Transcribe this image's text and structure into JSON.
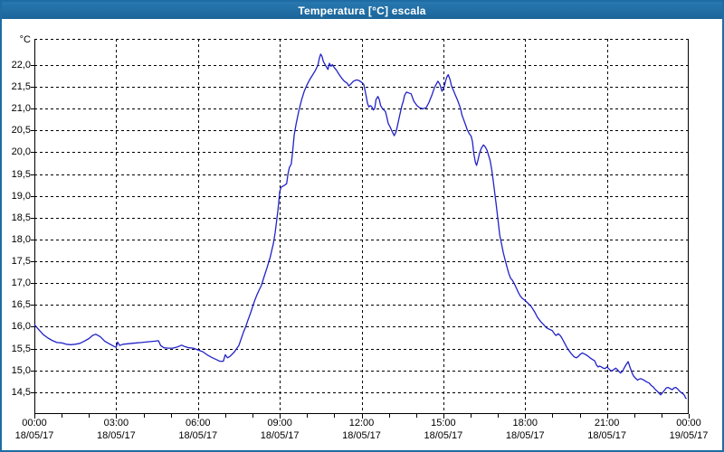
{
  "window": {
    "title": "Temperatura [°C] escala"
  },
  "colors": {
    "frame": "#1e6ca3",
    "titlebar": "#1e6ca3",
    "title_text": "#ffffff",
    "plot_background": "#ffffff",
    "grid": "#000000",
    "axis": "#000000",
    "series_line": "#2222c8",
    "label_text": "#000000"
  },
  "chart_data": {
    "type": "line",
    "title": "Temperatura [°C] escala",
    "series_name": "Temperatura",
    "y_unit_label": "°C",
    "xlabel": "",
    "ylabel": "°C",
    "x_range_hours": [
      0,
      24
    ],
    "y_range": [
      14.0,
      22.6
    ],
    "grid": "dashed",
    "legend": "none",
    "y_ticks": [
      22.0,
      21.5,
      21.0,
      20.5,
      20.0,
      19.5,
      19.0,
      18.5,
      18.0,
      17.5,
      17.0,
      16.5,
      16.0,
      15.5,
      15.0,
      14.5
    ],
    "y_tick_labels": [
      "22,0",
      "21,5",
      "21,0",
      "20,5",
      "20,0",
      "19,5",
      "19,0",
      "18,5",
      "18,0",
      "17,5",
      "17,0",
      "16,5",
      "16,0",
      "15,5",
      "15,0",
      "14,5"
    ],
    "x_ticks": [
      {
        "hour": 0,
        "time": "00:00",
        "date": "18/05/17"
      },
      {
        "hour": 3,
        "time": "03:00",
        "date": "18/05/17"
      },
      {
        "hour": 6,
        "time": "06:00",
        "date": "18/05/17"
      },
      {
        "hour": 9,
        "time": "09:00",
        "date": "18/05/17"
      },
      {
        "hour": 12,
        "time": "12:00",
        "date": "18/05/17"
      },
      {
        "hour": 15,
        "time": "15:00",
        "date": "18/05/17"
      },
      {
        "hour": 18,
        "time": "18:00",
        "date": "18/05/17"
      },
      {
        "hour": 21,
        "time": "21:00",
        "date": "18/05/17"
      },
      {
        "hour": 24,
        "time": "00:00",
        "date": "19/05/17"
      }
    ],
    "minor_tick_every_hours": 1,
    "points": [
      [
        0.0,
        16.05
      ],
      [
        0.17,
        15.93
      ],
      [
        0.33,
        15.82
      ],
      [
        0.5,
        15.74
      ],
      [
        0.67,
        15.68
      ],
      [
        0.83,
        15.64
      ],
      [
        1.0,
        15.63
      ],
      [
        1.17,
        15.6
      ],
      [
        1.33,
        15.59
      ],
      [
        1.5,
        15.6
      ],
      [
        1.67,
        15.62
      ],
      [
        1.83,
        15.67
      ],
      [
        2.0,
        15.73
      ],
      [
        2.13,
        15.8
      ],
      [
        2.25,
        15.83
      ],
      [
        2.42,
        15.77
      ],
      [
        2.58,
        15.67
      ],
      [
        2.75,
        15.61
      ],
      [
        2.92,
        15.55
      ],
      [
        3.0,
        15.53
      ],
      [
        3.05,
        15.65
      ],
      [
        3.13,
        15.57
      ],
      [
        3.25,
        15.6
      ],
      [
        3.42,
        15.61
      ],
      [
        3.58,
        15.62
      ],
      [
        3.75,
        15.63
      ],
      [
        3.92,
        15.64
      ],
      [
        4.08,
        15.65
      ],
      [
        4.25,
        15.66
      ],
      [
        4.42,
        15.67
      ],
      [
        4.55,
        15.68
      ],
      [
        4.63,
        15.57
      ],
      [
        4.75,
        15.52
      ],
      [
        4.92,
        15.51
      ],
      [
        5.08,
        15.51
      ],
      [
        5.25,
        15.54
      ],
      [
        5.4,
        15.58
      ],
      [
        5.5,
        15.55
      ],
      [
        5.67,
        15.52
      ],
      [
        5.83,
        15.51
      ],
      [
        6.0,
        15.47
      ],
      [
        6.17,
        15.43
      ],
      [
        6.33,
        15.36
      ],
      [
        6.5,
        15.3
      ],
      [
        6.67,
        15.25
      ],
      [
        6.8,
        15.21
      ],
      [
        6.93,
        15.21
      ],
      [
        7.0,
        15.36
      ],
      [
        7.08,
        15.29
      ],
      [
        7.17,
        15.32
      ],
      [
        7.33,
        15.42
      ],
      [
        7.5,
        15.57
      ],
      [
        7.67,
        15.88
      ],
      [
        7.75,
        16.0
      ],
      [
        7.83,
        16.15
      ],
      [
        7.92,
        16.3
      ],
      [
        8.0,
        16.45
      ],
      [
        8.08,
        16.6
      ],
      [
        8.17,
        16.74
      ],
      [
        8.25,
        16.85
      ],
      [
        8.33,
        16.95
      ],
      [
        8.42,
        17.14
      ],
      [
        8.53,
        17.35
      ],
      [
        8.65,
        17.6
      ],
      [
        8.77,
        17.92
      ],
      [
        8.83,
        18.15
      ],
      [
        8.88,
        18.4
      ],
      [
        8.93,
        18.65
      ],
      [
        8.97,
        18.9
      ],
      [
        9.0,
        19.1
      ],
      [
        9.05,
        19.2
      ],
      [
        9.17,
        19.24
      ],
      [
        9.25,
        19.28
      ],
      [
        9.3,
        19.5
      ],
      [
        9.35,
        19.65
      ],
      [
        9.42,
        19.73
      ],
      [
        9.47,
        20.0
      ],
      [
        9.53,
        20.4
      ],
      [
        9.6,
        20.65
      ],
      [
        9.7,
        20.95
      ],
      [
        9.8,
        21.2
      ],
      [
        9.9,
        21.4
      ],
      [
        10.0,
        21.55
      ],
      [
        10.1,
        21.67
      ],
      [
        10.2,
        21.77
      ],
      [
        10.3,
        21.87
      ],
      [
        10.4,
        22.0
      ],
      [
        10.45,
        22.15
      ],
      [
        10.5,
        22.25
      ],
      [
        10.55,
        22.2
      ],
      [
        10.6,
        22.08
      ],
      [
        10.7,
        21.97
      ],
      [
        10.77,
        21.9
      ],
      [
        10.82,
        22.04
      ],
      [
        10.88,
        21.97
      ],
      [
        10.93,
        22.01
      ],
      [
        11.0,
        21.94
      ],
      [
        11.08,
        21.88
      ],
      [
        11.17,
        21.79
      ],
      [
        11.27,
        21.7
      ],
      [
        11.37,
        21.63
      ],
      [
        11.48,
        21.58
      ],
      [
        11.53,
        21.52
      ],
      [
        11.6,
        21.56
      ],
      [
        11.7,
        21.63
      ],
      [
        11.82,
        21.66
      ],
      [
        11.92,
        21.64
      ],
      [
        12.03,
        21.59
      ],
      [
        12.08,
        21.56
      ],
      [
        12.15,
        21.35
      ],
      [
        12.22,
        21.12
      ],
      [
        12.27,
        21.04
      ],
      [
        12.32,
        21.07
      ],
      [
        12.38,
        21.04
      ],
      [
        12.43,
        20.97
      ],
      [
        12.48,
        21.0
      ],
      [
        12.53,
        21.21
      ],
      [
        12.6,
        21.28
      ],
      [
        12.65,
        21.21
      ],
      [
        12.7,
        21.07
      ],
      [
        12.77,
        21.0
      ],
      [
        12.82,
        20.97
      ],
      [
        12.88,
        20.93
      ],
      [
        12.93,
        20.8
      ],
      [
        12.98,
        20.66
      ],
      [
        13.05,
        20.58
      ],
      [
        13.12,
        20.48
      ],
      [
        13.2,
        20.38
      ],
      [
        13.27,
        20.48
      ],
      [
        13.33,
        20.65
      ],
      [
        13.4,
        20.85
      ],
      [
        13.48,
        21.07
      ],
      [
        13.53,
        21.17
      ],
      [
        13.58,
        21.31
      ],
      [
        13.65,
        21.38
      ],
      [
        13.73,
        21.36
      ],
      [
        13.82,
        21.34
      ],
      [
        13.92,
        21.17
      ],
      [
        14.03,
        21.07
      ],
      [
        14.13,
        21.02
      ],
      [
        14.25,
        21.0
      ],
      [
        14.37,
        21.02
      ],
      [
        14.47,
        21.14
      ],
      [
        14.58,
        21.31
      ],
      [
        14.68,
        21.49
      ],
      [
        14.8,
        21.63
      ],
      [
        14.87,
        21.56
      ],
      [
        14.95,
        21.4
      ],
      [
        15.03,
        21.5
      ],
      [
        15.08,
        21.63
      ],
      [
        15.13,
        21.73
      ],
      [
        15.18,
        21.78
      ],
      [
        15.25,
        21.66
      ],
      [
        15.3,
        21.52
      ],
      [
        15.37,
        21.42
      ],
      [
        15.45,
        21.3
      ],
      [
        15.52,
        21.2
      ],
      [
        15.58,
        21.1
      ],
      [
        15.63,
        21.0
      ],
      [
        15.68,
        20.86
      ],
      [
        15.75,
        20.74
      ],
      [
        15.82,
        20.62
      ],
      [
        15.88,
        20.51
      ],
      [
        15.95,
        20.43
      ],
      [
        16.02,
        20.37
      ],
      [
        16.07,
        20.24
      ],
      [
        16.12,
        19.96
      ],
      [
        16.18,
        19.76
      ],
      [
        16.22,
        19.7
      ],
      [
        16.28,
        19.84
      ],
      [
        16.33,
        19.98
      ],
      [
        16.4,
        20.1
      ],
      [
        16.47,
        20.17
      ],
      [
        16.53,
        20.13
      ],
      [
        16.6,
        20.05
      ],
      [
        16.65,
        19.95
      ],
      [
        16.72,
        19.8
      ],
      [
        16.78,
        19.58
      ],
      [
        16.83,
        19.35
      ],
      [
        16.88,
        19.1
      ],
      [
        16.93,
        18.85
      ],
      [
        17.0,
        18.48
      ],
      [
        17.07,
        18.1
      ],
      [
        17.13,
        17.92
      ],
      [
        17.2,
        17.7
      ],
      [
        17.27,
        17.52
      ],
      [
        17.33,
        17.38
      ],
      [
        17.4,
        17.22
      ],
      [
        17.47,
        17.11
      ],
      [
        17.53,
        17.07
      ],
      [
        17.6,
        16.99
      ],
      [
        17.67,
        16.9
      ],
      [
        17.75,
        16.79
      ],
      [
        17.83,
        16.7
      ],
      [
        17.9,
        16.65
      ],
      [
        18.0,
        16.6
      ],
      [
        18.12,
        16.53
      ],
      [
        18.23,
        16.46
      ],
      [
        18.35,
        16.34
      ],
      [
        18.45,
        16.22
      ],
      [
        18.57,
        16.12
      ],
      [
        18.68,
        16.05
      ],
      [
        18.78,
        15.98
      ],
      [
        18.9,
        15.94
      ],
      [
        19.0,
        15.91
      ],
      [
        19.07,
        15.84
      ],
      [
        19.13,
        15.8
      ],
      [
        19.22,
        15.84
      ],
      [
        19.3,
        15.79
      ],
      [
        19.35,
        15.74
      ],
      [
        19.42,
        15.66
      ],
      [
        19.48,
        15.59
      ],
      [
        19.53,
        15.53
      ],
      [
        19.6,
        15.46
      ],
      [
        19.67,
        15.4
      ],
      [
        19.73,
        15.36
      ],
      [
        19.8,
        15.31
      ],
      [
        19.88,
        15.29
      ],
      [
        19.95,
        15.32
      ],
      [
        20.02,
        15.37
      ],
      [
        20.1,
        15.4
      ],
      [
        20.17,
        15.38
      ],
      [
        20.23,
        15.36
      ],
      [
        20.3,
        15.33
      ],
      [
        20.38,
        15.29
      ],
      [
        20.47,
        15.25
      ],
      [
        20.55,
        15.22
      ],
      [
        20.62,
        15.12
      ],
      [
        20.68,
        15.08
      ],
      [
        20.73,
        15.1
      ],
      [
        20.8,
        15.08
      ],
      [
        20.87,
        15.05
      ],
      [
        20.93,
        15.04
      ],
      [
        21.0,
        15.08
      ],
      [
        21.07,
        15.04
      ],
      [
        21.13,
        15.0
      ],
      [
        21.18,
        14.99
      ],
      [
        21.25,
        15.02
      ],
      [
        21.32,
        15.05
      ],
      [
        21.38,
        15.02
      ],
      [
        21.45,
        14.97
      ],
      [
        21.5,
        14.94
      ],
      [
        21.57,
        14.98
      ],
      [
        21.63,
        15.05
      ],
      [
        21.7,
        15.13
      ],
      [
        21.78,
        15.2
      ],
      [
        21.85,
        15.07
      ],
      [
        21.92,
        14.95
      ],
      [
        21.98,
        14.87
      ],
      [
        22.05,
        14.82
      ],
      [
        22.12,
        14.78
      ],
      [
        22.18,
        14.8
      ],
      [
        22.25,
        14.81
      ],
      [
        22.32,
        14.79
      ],
      [
        22.4,
        14.76
      ],
      [
        22.48,
        14.73
      ],
      [
        22.55,
        14.71
      ],
      [
        22.62,
        14.66
      ],
      [
        22.7,
        14.62
      ],
      [
        22.78,
        14.56
      ],
      [
        22.85,
        14.52
      ],
      [
        22.92,
        14.47
      ],
      [
        22.97,
        14.44
      ],
      [
        23.03,
        14.48
      ],
      [
        23.08,
        14.52
      ],
      [
        23.13,
        14.56
      ],
      [
        23.18,
        14.6
      ],
      [
        23.25,
        14.61
      ],
      [
        23.32,
        14.58
      ],
      [
        23.4,
        14.56
      ],
      [
        23.47,
        14.6
      ],
      [
        23.53,
        14.61
      ],
      [
        23.6,
        14.57
      ],
      [
        23.67,
        14.52
      ],
      [
        23.73,
        14.49
      ],
      [
        23.8,
        14.46
      ],
      [
        23.85,
        14.42
      ],
      [
        23.88,
        14.37
      ],
      [
        23.92,
        14.35
      ]
    ]
  }
}
